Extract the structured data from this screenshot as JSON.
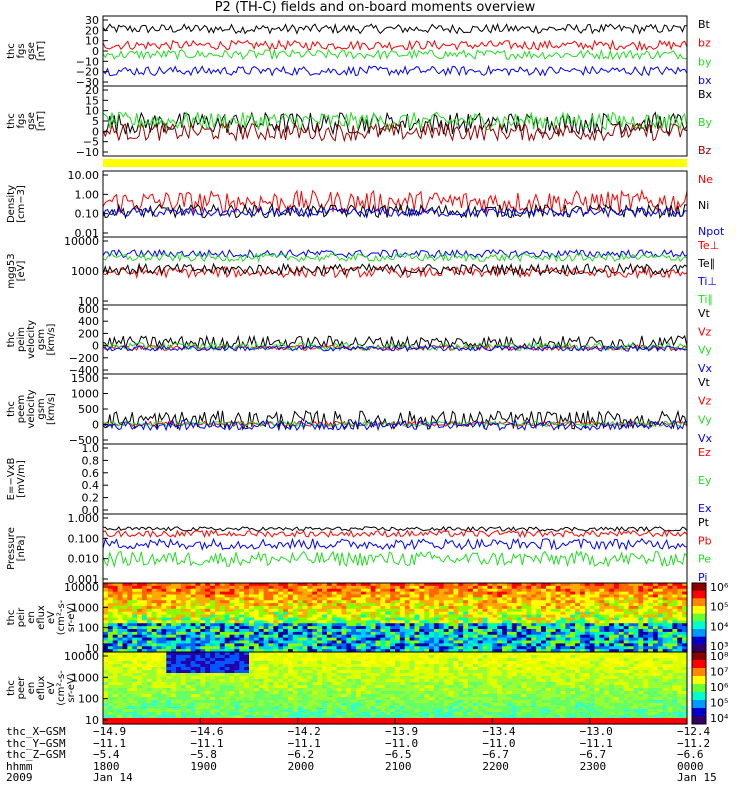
{
  "title": "P2 (TH-C) fields and on-board moments overview",
  "colors": {
    "black": "#000000",
    "red": "#ff0000",
    "green": "#22dd22",
    "blue": "#0000ff",
    "darkred": "#990000",
    "yellow": "#ffff00"
  },
  "chart_data": [
    {
      "type": "line",
      "ylabel": "thc\nfgs\ngse\n[nT]",
      "yticks": [
        "30",
        "20",
        "10",
        "0",
        "−10",
        "−20",
        "−30"
      ],
      "ylim": [
        -30,
        30
      ],
      "series": [
        {
          "name": "Bt",
          "color": "black",
          "level": 19,
          "noise": 4
        },
        {
          "name": "bz",
          "color": "red",
          "level": 5,
          "noise": 4
        },
        {
          "name": "by",
          "color": "green",
          "level": -3,
          "noise": 4
        },
        {
          "name": "bx",
          "color": "blue",
          "level": -17,
          "noise": 4
        }
      ]
    },
    {
      "type": "line",
      "ylabel": "thc\nfgs\ngse\n[nT]",
      "yticks": [
        "20",
        "15",
        "10",
        "5",
        "0",
        "−5",
        "−10"
      ],
      "ylim": [
        -12,
        20
      ],
      "series": [
        {
          "name": "Bx",
          "color": "black",
          "level": 3,
          "noise": 5
        },
        {
          "name": "By",
          "color": "green",
          "level": 4,
          "noise": 4
        },
        {
          "name": "Bz",
          "color": "darkred",
          "level": -1,
          "noise": 4
        }
      ]
    },
    {
      "type": "bar",
      "ylabel": "",
      "yticks": [],
      "fill": "yellow"
    },
    {
      "type": "line",
      "ylabel": "Density\n[cm−3]",
      "yticks": [
        "10.00",
        "1.00",
        "0.10",
        "0.01"
      ],
      "log": true,
      "ylim": [
        0.01,
        10
      ],
      "series": [
        {
          "name": "Ne",
          "color": "red",
          "level": 0.4,
          "noise": 0.5
        },
        {
          "name": "Ni",
          "color": "black",
          "level": 0.15,
          "noise": 0.3
        },
        {
          "name": "Npot",
          "color": "blue",
          "level": 0.13,
          "noise": 0.2
        }
      ]
    },
    {
      "type": "line",
      "ylabel": "mgg53\n[eV]",
      "yticks": [
        "10000",
        "1000",
        "100"
      ],
      "log": true,
      "ylim": [
        40,
        15000
      ],
      "series": [
        {
          "name": "Te⊥",
          "color": "red",
          "level": 700,
          "noise": 0.2
        },
        {
          "name": "Te∥",
          "color": "black",
          "level": 900,
          "noise": 0.2
        },
        {
          "name": "Ti⊥",
          "color": "blue",
          "level": 3500,
          "noise": 0.15
        },
        {
          "name": "Ti∥",
          "color": "green",
          "level": 2500,
          "noise": 0.15
        }
      ]
    },
    {
      "type": "line",
      "ylabel": "thc\npeim\nvelocity\ngsm\n[km/s]",
      "yticks": [
        "600",
        "400",
        "200",
        "0",
        "−200",
        "−400"
      ],
      "ylim": [
        -400,
        650
      ],
      "series": [
        {
          "name": "Vt",
          "color": "black",
          "level": 80,
          "noise": 100
        },
        {
          "name": "Vz",
          "color": "red",
          "level": 0,
          "noise": 40
        },
        {
          "name": "Vy",
          "color": "green",
          "level": 20,
          "noise": 60
        },
        {
          "name": "Vx",
          "color": "blue",
          "level": -10,
          "noise": 40
        }
      ]
    },
    {
      "type": "line",
      "ylabel": "thc\npeem\nvelocity\ngsm\n[km/s]",
      "yticks": [
        "1500",
        "1000",
        "500",
        "0",
        "−500"
      ],
      "ylim": [
        -650,
        1600
      ],
      "series": [
        {
          "name": "Vt",
          "color": "black",
          "level": 120,
          "noise": 300
        },
        {
          "name": "Vz",
          "color": "red",
          "level": 0,
          "noise": 80
        },
        {
          "name": "Vy",
          "color": "green",
          "level": 0,
          "noise": 80
        },
        {
          "name": "Vx",
          "color": "blue",
          "level": -50,
          "noise": 150
        }
      ]
    },
    {
      "type": "line",
      "ylabel": "E=−VxB\n[mV/m]",
      "yticks": [
        "1.0",
        "0.8",
        "0.6",
        "0.4",
        "0.2",
        "0.0"
      ],
      "ylim": [
        0,
        1
      ],
      "series": [
        {
          "name": "Ez",
          "color": "red",
          "level": null
        },
        {
          "name": "Ey",
          "color": "green",
          "level": null
        },
        {
          "name": "Ex",
          "color": "blue",
          "level": null
        }
      ]
    },
    {
      "type": "line",
      "ylabel": "Pressure\n[nPa]",
      "yticks": [
        "1.000",
        "0.100",
        "0.010",
        "0.001"
      ],
      "log": true,
      "ylim": [
        0.0006,
        1
      ],
      "series": [
        {
          "name": "Pt",
          "color": "black",
          "level": 0.2,
          "noise": 0.1
        },
        {
          "name": "Pb",
          "color": "red",
          "level": 0.12,
          "noise": 0.15
        },
        {
          "name": "Pe",
          "color": "green",
          "level": 0.008,
          "noise": 0.35
        },
        {
          "name": "Pi",
          "color": "blue",
          "level": 0.04,
          "noise": 0.25
        }
      ]
    },
    {
      "type": "heatmap",
      "ylabel": "thc\npeir\nen\neflux\neV\n(cm²-s-\nsr-eV)",
      "yticks": [
        "10000",
        "1000",
        "100",
        "10"
      ],
      "log": true,
      "colorbar": [
        "10⁶",
        "10⁵",
        "10⁴",
        "10³"
      ]
    },
    {
      "type": "heatmap",
      "ylabel": "thc\npeer\nen\neflux\neV\n(cm²-s-\nsr-eV)",
      "yticks": [
        "10000",
        "1000",
        "100",
        "10"
      ],
      "log": true,
      "colorbar": [
        "10⁸",
        "10⁷",
        "10⁶",
        "10⁵",
        "10⁴"
      ]
    }
  ],
  "xaxis": {
    "ticks": [
      "1800",
      "1900",
      "2000",
      "2100",
      "2200",
      "2300",
      "0000"
    ],
    "rows": [
      {
        "label": "thc_X−GSM",
        "values": [
          "−14.9",
          "−14.6",
          "−14.2",
          "−13.9",
          "−13.4",
          "−13.0",
          "−12.4"
        ]
      },
      {
        "label": "thc_Y−GSM",
        "values": [
          "−11.1",
          "−11.1",
          "−11.1",
          "−11.0",
          "−11.0",
          "−11.1",
          "−11.2"
        ]
      },
      {
        "label": "thc_Z−GSM",
        "values": [
          "−5.4",
          "−5.8",
          "−6.2",
          "−6.5",
          "−6.7",
          "−6.7",
          "−6.6"
        ]
      },
      {
        "label": "hhmm",
        "values": [
          "1800",
          "1900",
          "2000",
          "2100",
          "2200",
          "2300",
          "0000"
        ]
      },
      {
        "label": "2009",
        "values": [
          "Jan 14",
          "",
          "",
          "",
          "",
          "",
          "Jan 15"
        ]
      }
    ]
  }
}
